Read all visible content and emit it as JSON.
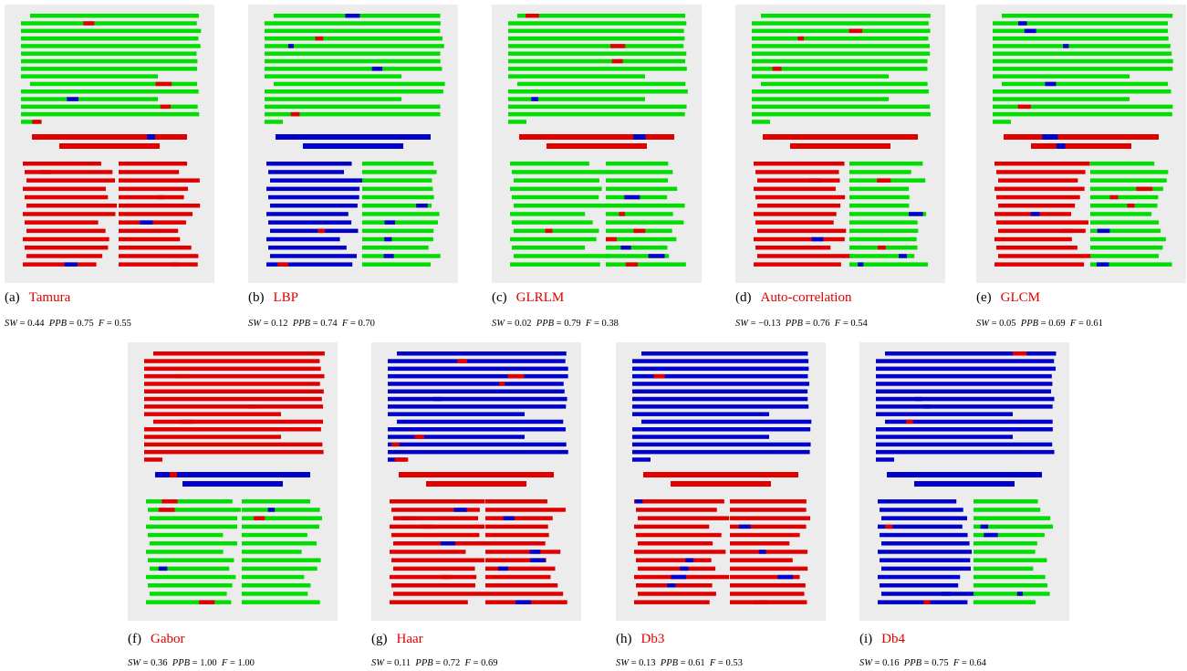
{
  "metric_names": [
    "SW",
    "PPB",
    "F"
  ],
  "relation": "=",
  "panels": [
    {
      "label": "(a)",
      "name": "Tamura",
      "metrics": [
        "0.44",
        "0.75",
        "0.55"
      ]
    },
    {
      "label": "(b)",
      "name": "LBP",
      "metrics": [
        "0.12",
        "0.74",
        "0.70"
      ]
    },
    {
      "label": "(c)",
      "name": "GLRLM",
      "metrics": [
        "0.02",
        "0.79",
        "0.38"
      ]
    },
    {
      "label": "(d)",
      "name": "Auto-correlation",
      "metrics": [
        "−0.13",
        "0.76",
        "0.54"
      ]
    },
    {
      "label": "(e)",
      "name": "GLCM",
      "metrics": [
        "0.05",
        "0.69",
        "0.61"
      ]
    },
    {
      "label": "(f)",
      "name": "Gabor",
      "metrics": [
        "0.36",
        "1.00",
        "1.00"
      ]
    },
    {
      "label": "(g)",
      "name": "Haar",
      "metrics": [
        "0.11",
        "0.72",
        "0.69"
      ]
    },
    {
      "label": "(h)",
      "name": "Db3",
      "metrics": [
        "0.13",
        "0.61",
        "0.53"
      ]
    },
    {
      "label": "(i)",
      "name": "Db4",
      "metrics": [
        "0.16",
        "0.75",
        "0.64"
      ]
    }
  ]
}
